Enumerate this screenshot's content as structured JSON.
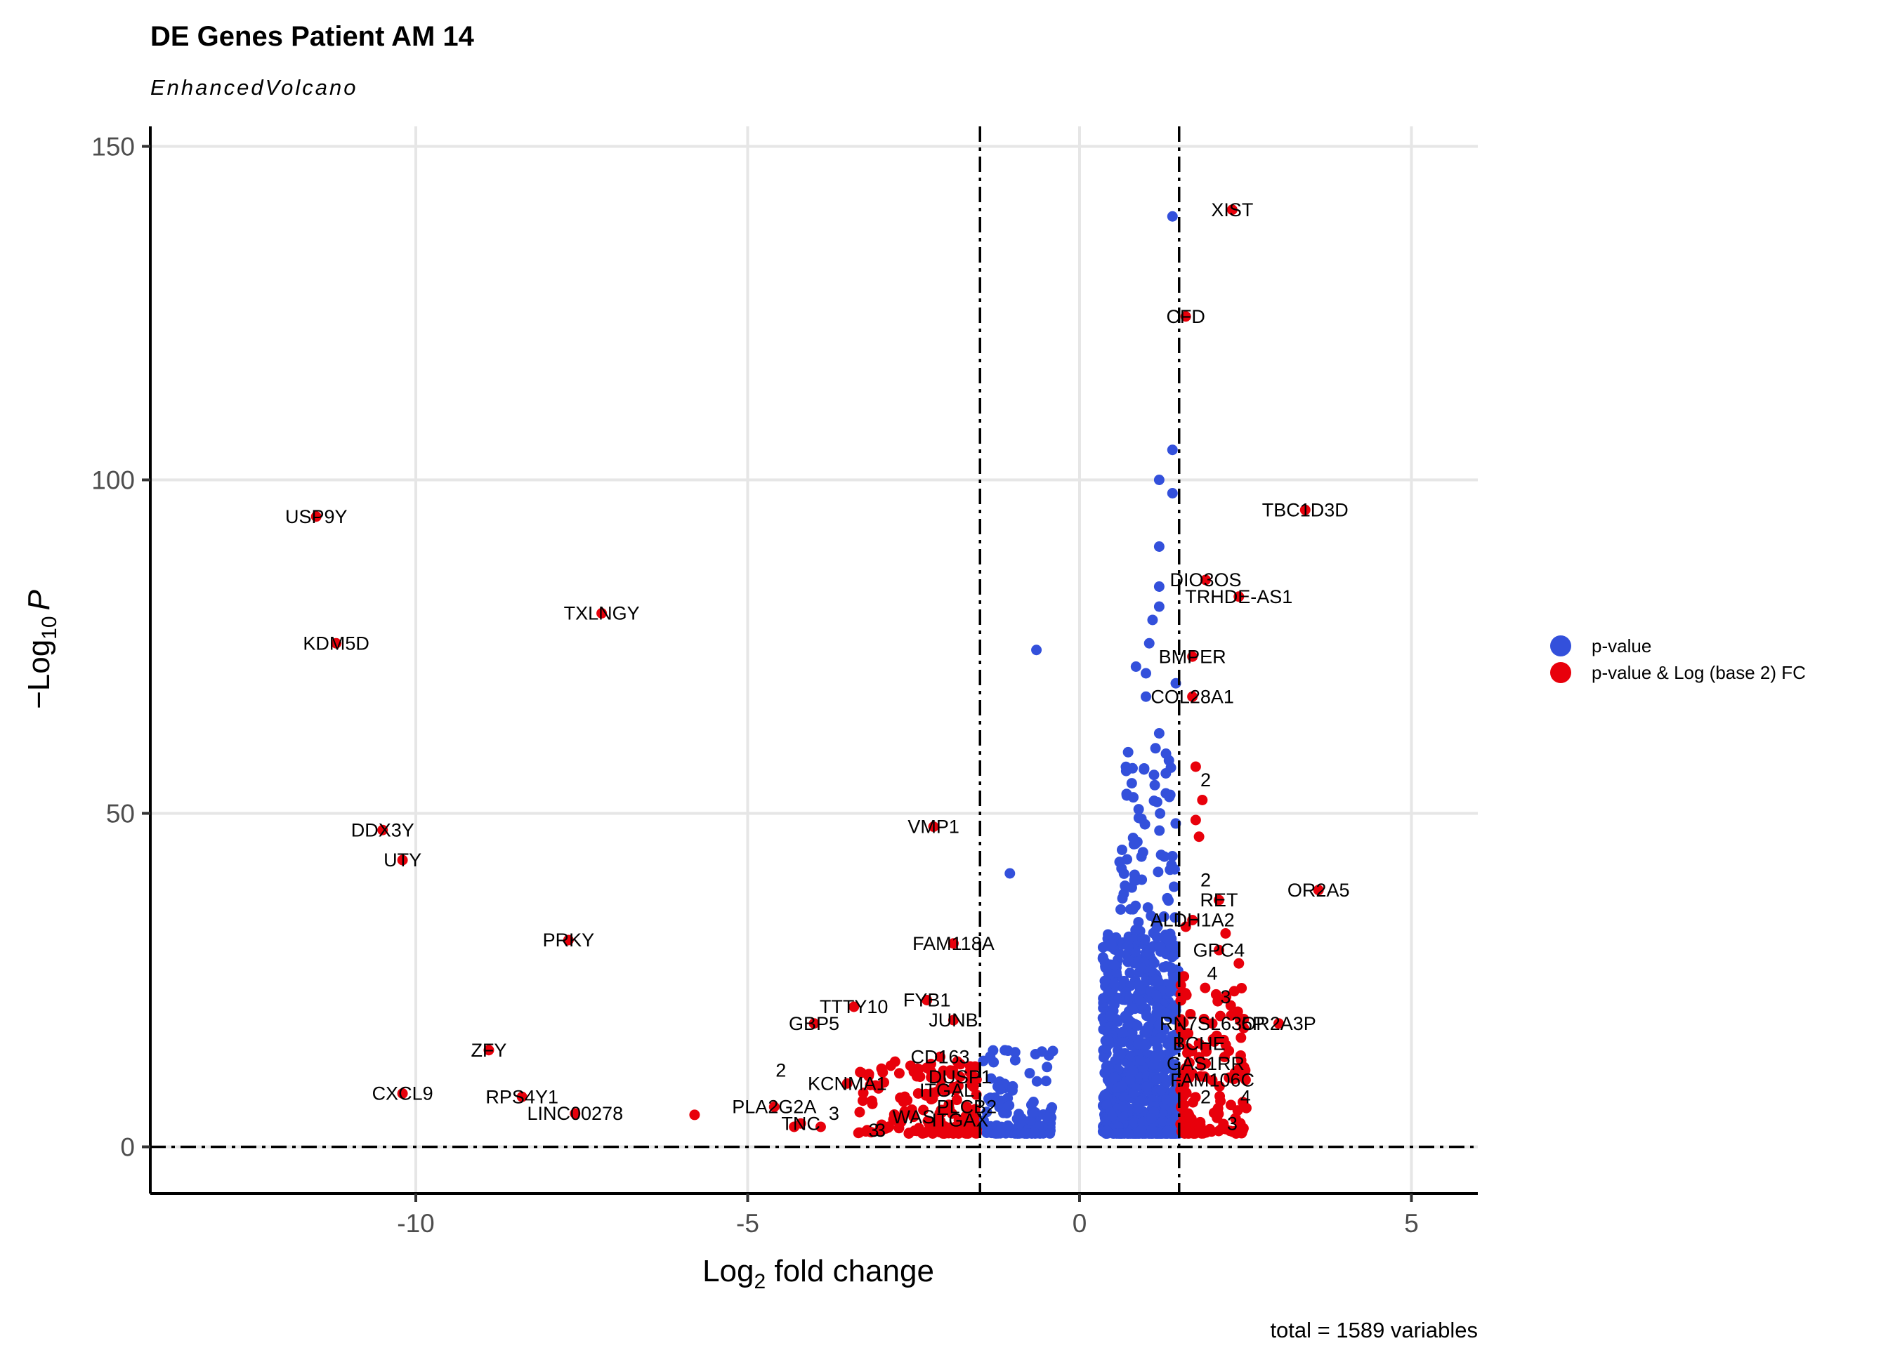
{
  "chart_data": {
    "type": "scatter",
    "title": "DE Genes Patient AM 14",
    "subtitle": "EnhancedVolcano",
    "xlabel_main": "Log",
    "xlabel_sub": "2",
    "xlabel_rest": " fold change",
    "ylabel_pre": "−Log",
    "ylabel_sub": "10",
    "ylabel_rest": "P",
    "caption": "total = 1589 variables",
    "xlim": [
      -14,
      6
    ],
    "ylim": [
      -7,
      153
    ],
    "xticks": [
      -10,
      -5,
      0,
      5
    ],
    "xtick_labels": [
      "-10",
      "-5",
      "0",
      "5"
    ],
    "yticks": [
      0,
      50,
      100,
      150
    ],
    "ytick_labels": [
      "0",
      "50",
      "100",
      "150"
    ],
    "fc_cutoff": [
      -1.5,
      1.5
    ],
    "p_cutoff": 0,
    "grid": true,
    "legend_position": "right",
    "colors": {
      "pvalue": "#3350DB",
      "pvalue_fc": "#E8000B"
    },
    "legend": [
      {
        "key": "pvalue",
        "label": "p-value"
      },
      {
        "key": "pvalue_fc",
        "label": "p-value & Log (base 2) FC"
      }
    ],
    "labeled_genes": [
      {
        "gene": "XIST",
        "x": 2.3,
        "y": 140.5
      },
      {
        "gene": "CFD",
        "x": 1.6,
        "y": 124.5
      },
      {
        "gene": "TBC1D3D",
        "x": 3.4,
        "y": 95.5
      },
      {
        "gene": "USP9Y",
        "x": -11.5,
        "y": 94.5
      },
      {
        "gene": "DIO3OS",
        "x": 1.9,
        "y": 85
      },
      {
        "gene": "TRHDE-AS1",
        "x": 2.4,
        "y": 82.5
      },
      {
        "gene": "TXLNGY",
        "x": -7.2,
        "y": 80
      },
      {
        "gene": "KDM5D",
        "x": -11.2,
        "y": 75.5
      },
      {
        "gene": "BMPER",
        "x": 1.7,
        "y": 73.5
      },
      {
        "gene": "COL28A1",
        "x": 1.7,
        "y": 67.5
      },
      {
        "gene": "DDX3Y",
        "x": -10.5,
        "y": 47.5
      },
      {
        "gene": "UTY",
        "x": -10.2,
        "y": 43
      },
      {
        "gene": "VMP1",
        "x": -2.2,
        "y": 48
      },
      {
        "gene": "OR2A5",
        "x": 3.6,
        "y": 38.5
      },
      {
        "gene": "RET",
        "x": 2.1,
        "y": 37
      },
      {
        "gene": "ALDH1A2",
        "x": 1.7,
        "y": 34
      },
      {
        "gene": "PRKY",
        "x": -7.7,
        "y": 31
      },
      {
        "gene": "FAM118A",
        "x": -1.9,
        "y": 30.5
      },
      {
        "gene": "GPC4",
        "x": 2.1,
        "y": 29.5
      },
      {
        "gene": "FYB1",
        "x": -2.3,
        "y": 22
      },
      {
        "gene": "TTTY10",
        "x": -3.4,
        "y": 21
      },
      {
        "gene": "OR2A3P",
        "x": 3.0,
        "y": 18.5
      },
      {
        "gene": "GBP5",
        "x": -4.0,
        "y": 18.5
      },
      {
        "gene": "JUNB",
        "x": -1.9,
        "y": 19
      },
      {
        "gene": "RN7SL635P",
        "x": 2.0,
        "y": 18.5
      },
      {
        "gene": "BCHE",
        "x": 1.8,
        "y": 15.5
      },
      {
        "gene": "ZFY",
        "x": -8.9,
        "y": 14.5
      },
      {
        "gene": "CD163",
        "x": -2.1,
        "y": 13.5
      },
      {
        "gene": "GAS1RR",
        "x": 1.9,
        "y": 12.5
      },
      {
        "gene": "DUSP1",
        "x": -1.8,
        "y": 10.5
      },
      {
        "gene": "FAM106C",
        "x": 2.0,
        "y": 10
      },
      {
        "gene": "KCNMA1",
        "x": -3.5,
        "y": 9.5
      },
      {
        "gene": "ITGAL",
        "x": -2.0,
        "y": 8.5
      },
      {
        "gene": "CXCL9",
        "x": -10.2,
        "y": 8
      },
      {
        "gene": "RPS4Y1",
        "x": -8.4,
        "y": 7.5
      },
      {
        "gene": "PLA2G2A",
        "x": -4.6,
        "y": 6
      },
      {
        "gene": "PLCB2",
        "x": -1.7,
        "y": 6
      },
      {
        "gene": "LINC00278",
        "x": -7.6,
        "y": 5
      },
      {
        "gene": "WAS",
        "x": -2.5,
        "y": 4.5
      },
      {
        "gene": "ITGAX",
        "x": -1.8,
        "y": 4
      },
      {
        "gene": "TNC",
        "x": -4.2,
        "y": 3.5
      }
    ],
    "number_labels": [
      {
        "label": "2",
        "x": 1.9,
        "y": 55
      },
      {
        "label": "2",
        "x": 1.9,
        "y": 40
      },
      {
        "label": "4",
        "x": 2.0,
        "y": 26
      },
      {
        "label": "3",
        "x": 2.2,
        "y": 22.5
      },
      {
        "label": "2",
        "x": -4.5,
        "y": 11.5
      },
      {
        "label": "2",
        "x": 1.9,
        "y": 7.5
      },
      {
        "label": "4",
        "x": 2.5,
        "y": 7.5
      },
      {
        "label": "3",
        "x": -3.7,
        "y": 5
      },
      {
        "label": "3",
        "x": 2.3,
        "y": 3.5
      },
      {
        "label": "3",
        "x": -3.1,
        "y": 2.5
      },
      {
        "label": "3",
        "x": -3.0,
        "y": 2.5
      }
    ]
  }
}
